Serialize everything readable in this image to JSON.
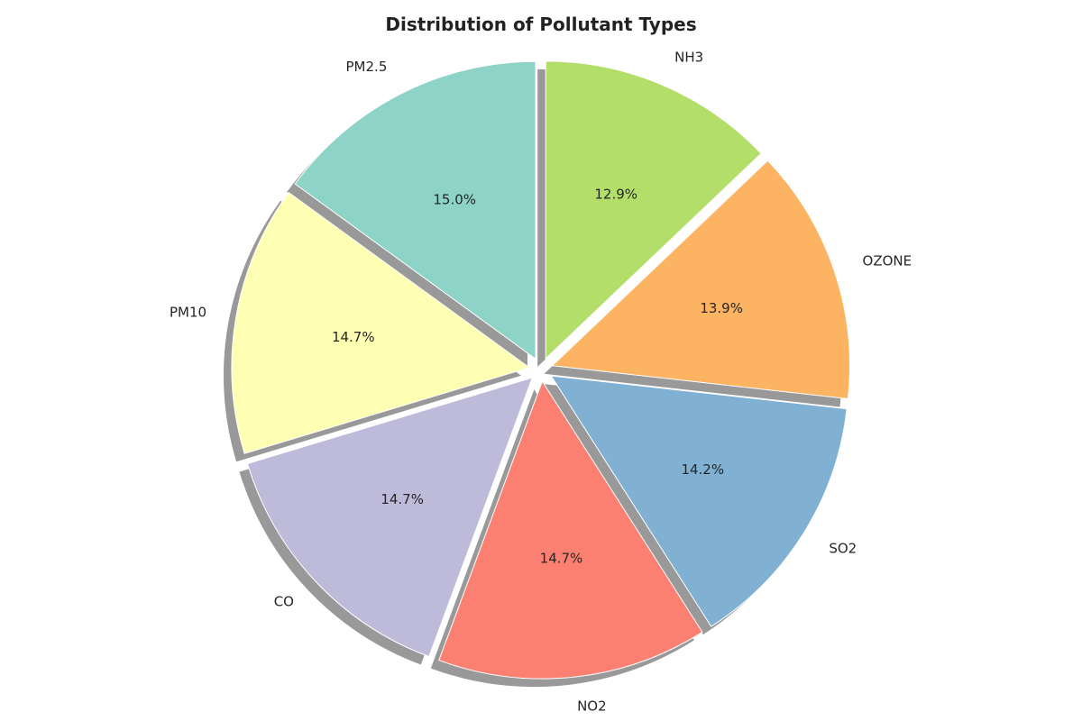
{
  "chart_data": {
    "type": "pie",
    "title": "Distribution of Pollutant Types",
    "categories": [
      "PM2.5",
      "PM10",
      "CO",
      "NO2",
      "SO2",
      "OZONE",
      "NH3"
    ],
    "values": [
      15.0,
      14.7,
      14.7,
      14.7,
      14.2,
      13.9,
      12.9
    ],
    "value_labels": [
      "15.0%",
      "14.7%",
      "14.7%",
      "14.7%",
      "14.2%",
      "13.9%",
      "12.9%"
    ],
    "colors": [
      "#8dd3c7",
      "#ffffb3",
      "#bebada",
      "#fb8072",
      "#80b1d3",
      "#fdb462",
      "#b3de69"
    ],
    "start_angle_deg": 90,
    "direction": "counterclockwise",
    "exploded": true,
    "shadow": true,
    "legend": "none"
  }
}
